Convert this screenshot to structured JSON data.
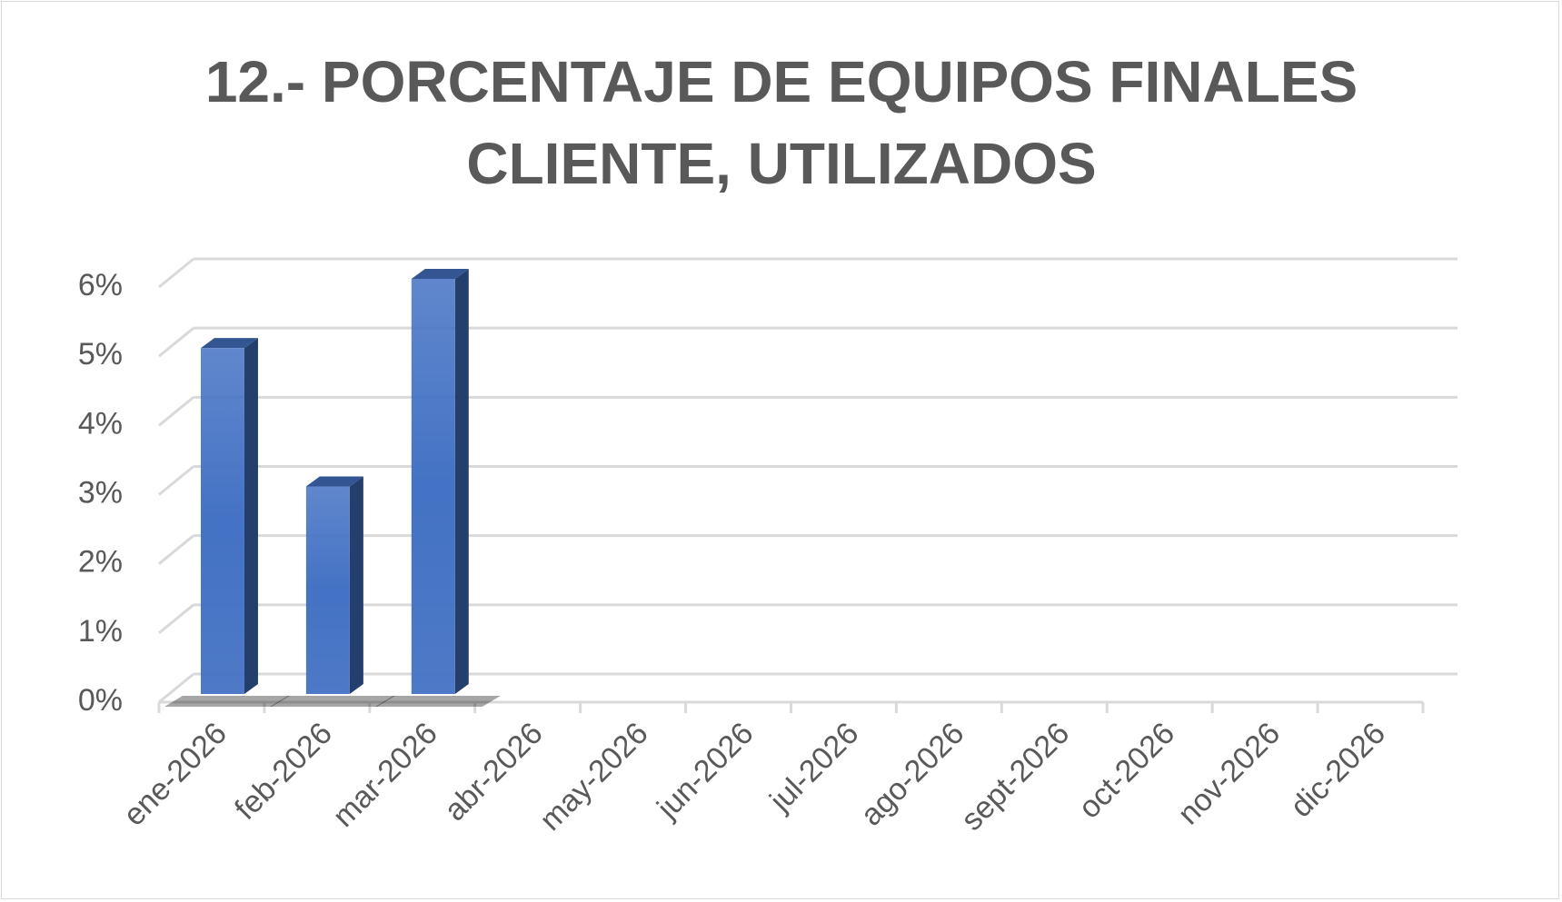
{
  "chart_data": {
    "type": "bar3d",
    "title": "12.- PORCENTAJE DE EQUIPOS FINALES CLIENTE, UTILIZADOS",
    "categories": [
      "ene-2026",
      "feb-2026",
      "mar-2026",
      "abr-2026",
      "may-2026",
      "jun-2026",
      "jul-2026",
      "ago-2026",
      "sept-2026",
      "oct-2026",
      "nov-2026",
      "dic-2026"
    ],
    "values": [
      5,
      3,
      6,
      null,
      null,
      null,
      null,
      null,
      null,
      null,
      null,
      null
    ],
    "color": "#4472c4",
    "ylim": [
      0,
      6
    ],
    "yticks": [
      {
        "value": 0,
        "label": "0%"
      },
      {
        "value": 1,
        "label": "1%"
      },
      {
        "value": 2,
        "label": "2%"
      },
      {
        "value": 3,
        "label": "3%"
      },
      {
        "value": 4,
        "label": "4%"
      },
      {
        "value": 5,
        "label": "5%"
      },
      {
        "value": 6,
        "label": "6%"
      }
    ],
    "grid": true
  }
}
